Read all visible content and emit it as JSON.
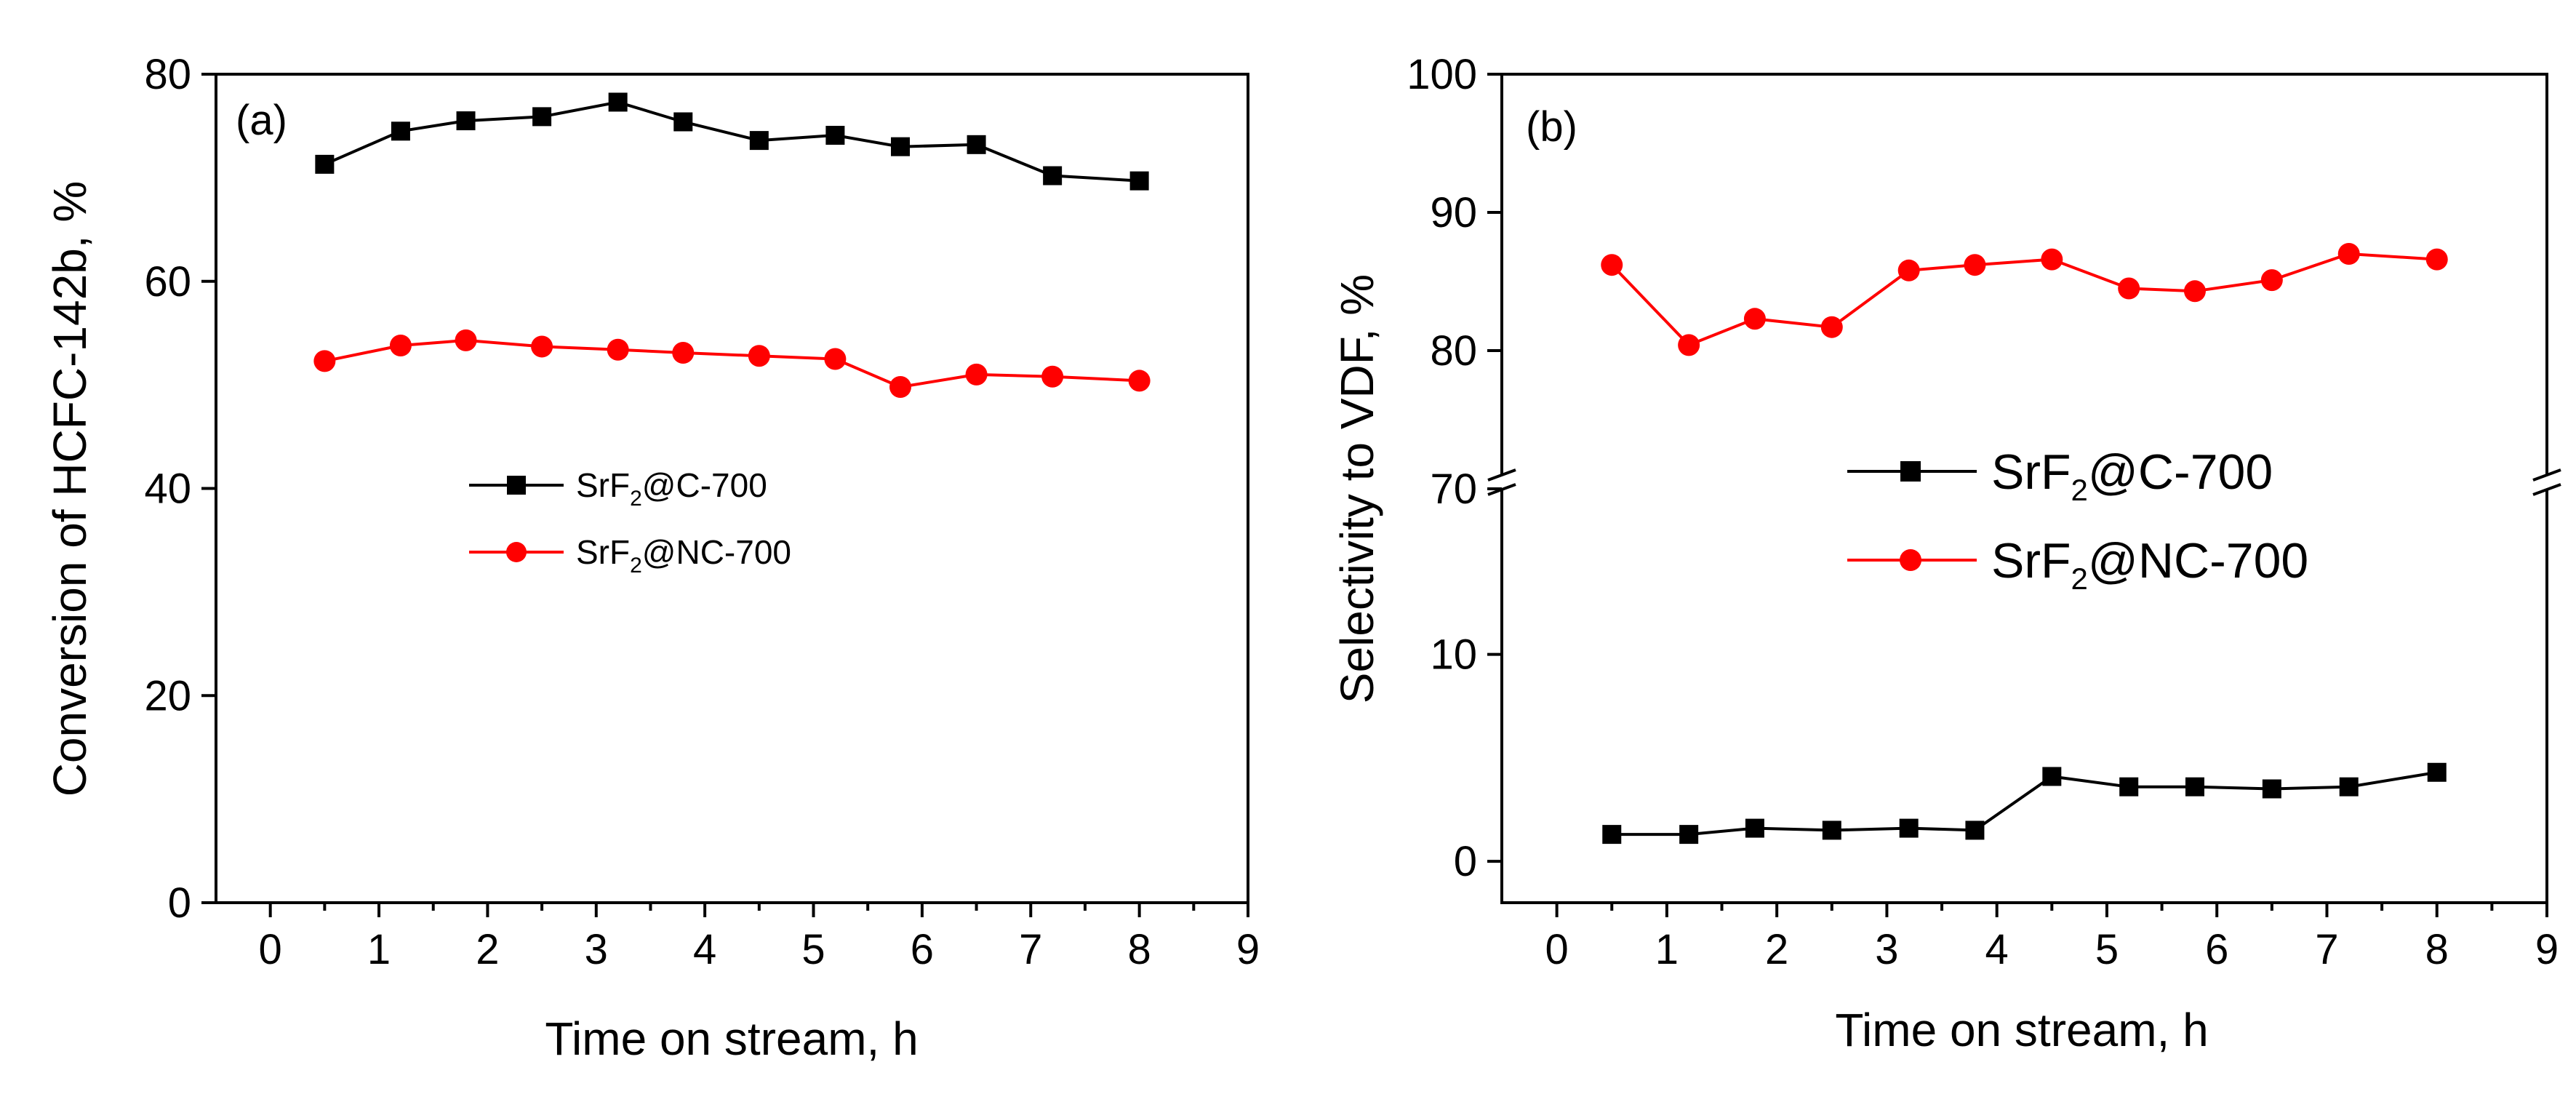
{
  "chart_data": [
    {
      "type": "line",
      "panel_label": "(a)",
      "xlabel": "Time on stream, h",
      "ylabel": "Conversion of HCFC-142b, %",
      "xlim": [
        -0.5,
        9
      ],
      "ylim": [
        0,
        80
      ],
      "x_ticks": [
        "0",
        "1",
        "2",
        "3",
        "4",
        "5",
        "6",
        "7",
        "8",
        "9"
      ],
      "y_ticks": [
        "0",
        "20",
        "40",
        "60",
        "80"
      ],
      "legend_placement": "center-left",
      "series": [
        {
          "name": "SrF2@C-700",
          "name_main": "SrF",
          "name_sub": "2",
          "name_rest": "@C-700",
          "color": "#000000",
          "marker": "square",
          "x": [
            0.5,
            1.2,
            1.8,
            2.5,
            3.2,
            3.8,
            4.5,
            5.2,
            5.8,
            6.5,
            7.2,
            8.0
          ],
          "y": [
            71.3,
            74.5,
            75.5,
            75.9,
            77.3,
            75.4,
            73.6,
            74.1,
            73.0,
            73.2,
            70.2,
            69.7
          ]
        },
        {
          "name": "SrF2@NC-700",
          "name_main": "SrF",
          "name_sub": "2",
          "name_rest": "@NC-700",
          "color": "#ff0000",
          "marker": "circle",
          "x": [
            0.5,
            1.2,
            1.8,
            2.5,
            3.2,
            3.8,
            4.5,
            5.2,
            5.8,
            6.5,
            7.2,
            8.0
          ],
          "y": [
            52.3,
            53.8,
            54.3,
            53.7,
            53.4,
            53.1,
            52.8,
            52.5,
            49.8,
            51.0,
            50.8,
            50.4
          ]
        }
      ]
    },
    {
      "type": "line",
      "panel_label": "(b)",
      "xlabel": "Time on stream, h",
      "ylabel": "Selectivity to VDF, %",
      "xlim": [
        -0.5,
        9
      ],
      "ylim": [
        -2,
        100
      ],
      "y_axis_break": [
        18,
        70
      ],
      "x_ticks": [
        "0",
        "1",
        "2",
        "3",
        "4",
        "5",
        "6",
        "7",
        "8",
        "9"
      ],
      "y_ticks": [
        "0",
        "10",
        "70",
        "80",
        "90",
        "100"
      ],
      "legend_placement": "center",
      "series": [
        {
          "name": "SrF2@C-700",
          "name_main": "SrF",
          "name_sub": "2",
          "name_rest": "@C-700",
          "color": "#000000",
          "marker": "square",
          "x": [
            0.5,
            1.2,
            1.8,
            2.5,
            3.2,
            3.8,
            4.5,
            5.2,
            5.8,
            6.5,
            7.2,
            8.0
          ],
          "y": [
            1.3,
            1.3,
            1.6,
            1.5,
            1.6,
            1.5,
            4.1,
            3.6,
            3.6,
            3.5,
            3.6,
            4.3
          ]
        },
        {
          "name": "SrF2@NC-700",
          "name_main": "SrF",
          "name_sub": "2",
          "name_rest": "@NC-700",
          "color": "#ff0000",
          "marker": "circle",
          "x": [
            0.5,
            1.2,
            1.8,
            2.5,
            3.2,
            3.8,
            4.5,
            5.2,
            5.8,
            6.5,
            7.2,
            8.0
          ],
          "y": [
            86.2,
            80.4,
            82.3,
            81.7,
            85.8,
            86.2,
            86.6,
            84.5,
            84.3,
            85.1,
            87.0,
            86.6
          ]
        }
      ]
    }
  ]
}
